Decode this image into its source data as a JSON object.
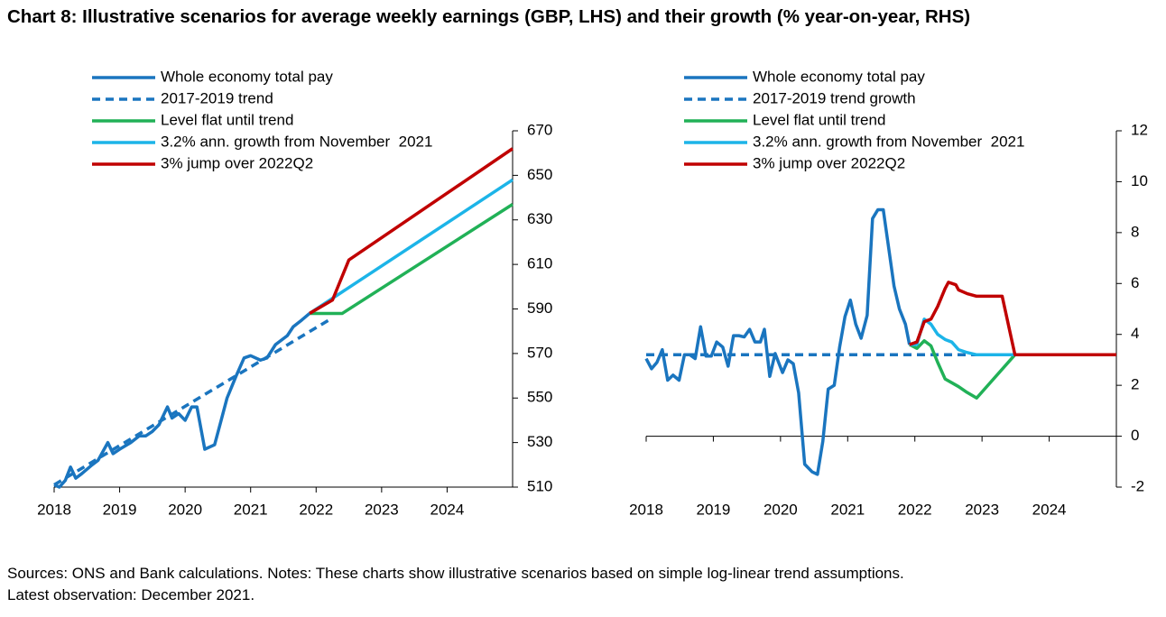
{
  "title": "Chart 8: Illustrative scenarios for average weekly earnings (GBP, LHS) and their growth (% year-on-year, RHS)",
  "notes": [
    "Sources: ONS and Bank calculations. Notes: These charts show illustrative scenarios based on simple log-linear trend assumptions.",
    "Latest observation: December 2021."
  ],
  "chart_data": [
    {
      "type": "line",
      "y_axis_side": "right",
      "legend": "upper left",
      "xlim": [
        2018,
        2025
      ],
      "xticks": [
        2018,
        2019,
        2020,
        2021,
        2022,
        2023,
        2024
      ],
      "ylim": [
        510,
        670
      ],
      "yticks": [
        510,
        530,
        550,
        570,
        590,
        610,
        630,
        650,
        670
      ],
      "series": [
        {
          "name": "Whole economy total pay",
          "color": "#1a75bf",
          "linestyle": "solid",
          "x": [
            2018,
            2018.08,
            2018.17,
            2018.25,
            2018.33,
            2018.42,
            2018.58,
            2018.67,
            2018.82,
            2018.9,
            2019,
            2019.17,
            2019.3,
            2019.4,
            2019.5,
            2019.6,
            2019.73,
            2019.8,
            2019.9,
            2020,
            2020.1,
            2020.18,
            2020.3,
            2020.45,
            2020.55,
            2020.64,
            2020.78,
            2020.9,
            2021,
            2021.15,
            2021.25,
            2021.38,
            2021.56,
            2021.65,
            2021.78,
            2021.9
          ],
          "values": [
            511,
            510,
            513,
            519,
            514,
            516,
            520,
            522,
            530,
            525,
            527,
            530,
            533,
            533,
            535,
            538,
            546,
            541,
            543,
            540,
            546,
            546,
            527,
            529,
            540,
            550,
            560,
            568,
            569,
            567,
            568,
            574,
            578,
            582,
            585,
            588
          ]
        },
        {
          "name": "2017-2019 trend",
          "color": "#1a75bf",
          "linestyle": "dashed",
          "x": [
            2018,
            2022.25
          ],
          "values": [
            511,
            586
          ]
        },
        {
          "name": "Level flat until trend",
          "color": "#21b157",
          "linestyle": "solid",
          "x": [
            2021.9,
            2022.4,
            2025
          ],
          "values": [
            588,
            588,
            637
          ]
        },
        {
          "name": "3.2% ann. growth from November  2021",
          "color": "#1cb4e8",
          "linestyle": "solid",
          "x": [
            2021.9,
            2025
          ],
          "values": [
            588,
            648
          ]
        },
        {
          "name": "3% jump over 2022Q2",
          "color": "#c00000",
          "linestyle": "solid",
          "x": [
            2021.9,
            2022.25,
            2022.5,
            2025
          ],
          "values": [
            588,
            594,
            612,
            662
          ]
        }
      ]
    },
    {
      "type": "line",
      "y_axis_side": "right",
      "legend": "upper left",
      "xlim": [
        2018,
        2025
      ],
      "xticks": [
        2018,
        2019,
        2020,
        2021,
        2022,
        2023,
        2024
      ],
      "ylim": [
        -2,
        12
      ],
      "yticks": [
        -2,
        0,
        2,
        4,
        6,
        8,
        10,
        12
      ],
      "series": [
        {
          "name": "Whole economy total pay",
          "color": "#1a75bf",
          "linestyle": "solid",
          "x": [
            2018,
            2018.08,
            2018.16,
            2018.24,
            2018.32,
            2018.4,
            2018.49,
            2018.57,
            2018.65,
            2018.73,
            2018.81,
            2018.89,
            2018.97,
            2019.05,
            2019.14,
            2019.22,
            2019.3,
            2019.38,
            2019.46,
            2019.54,
            2019.62,
            2019.7,
            2019.76,
            2019.84,
            2019.92,
            2020.03,
            2020.11,
            2020.19,
            2020.27,
            2020.36,
            2020.47,
            2020.55,
            2020.63,
            2020.71,
            2020.8,
            2020.88,
            2020.96,
            2021.04,
            2021.12,
            2021.2,
            2021.29,
            2021.37,
            2021.45,
            2021.53,
            2021.61,
            2021.69,
            2021.77,
            2021.86,
            2021.92
          ],
          "values": [
            3.05,
            2.65,
            2.9,
            3.4,
            2.2,
            2.4,
            2.2,
            3.2,
            3.2,
            3.05,
            4.3,
            3.15,
            3.15,
            3.7,
            3.5,
            2.75,
            3.95,
            3.95,
            3.9,
            4.2,
            3.7,
            3.7,
            4.2,
            2.35,
            3.25,
            2.5,
            3.0,
            2.85,
            1.7,
            -1.1,
            -1.4,
            -1.5,
            -0.2,
            1.85,
            2.0,
            3.5,
            4.7,
            5.35,
            4.4,
            3.85,
            4.75,
            8.55,
            8.9,
            8.9,
            7.4,
            5.9,
            5.0,
            4.4,
            3.6
          ]
        },
        {
          "name": "2017-2019 trend growth",
          "color": "#1a75bf",
          "linestyle": "dashed",
          "x": [
            2018,
            2023.45
          ],
          "values": [
            3.2,
            3.2
          ]
        },
        {
          "name": "Level flat until trend",
          "color": "#21b157",
          "linestyle": "solid",
          "x": [
            2021.92,
            2022.03,
            2022.14,
            2022.24,
            2022.34,
            2022.45,
            2022.55,
            2022.65,
            2022.76,
            2022.92,
            2023.49,
            2025
          ],
          "values": [
            3.6,
            3.45,
            3.75,
            3.55,
            2.9,
            2.25,
            2.1,
            1.95,
            1.75,
            1.5,
            3.2,
            3.2
          ]
        },
        {
          "name": "3.2% ann. growth from November  2021",
          "color": "#1cb4e8",
          "linestyle": "solid",
          "x": [
            2021.92,
            2022.03,
            2022.14,
            2022.24,
            2022.34,
            2022.45,
            2022.55,
            2022.65,
            2022.76,
            2022.92,
            2023.49,
            2025
          ],
          "values": [
            3.6,
            3.6,
            4.6,
            4.4,
            4.0,
            3.8,
            3.7,
            3.4,
            3.3,
            3.2,
            3.2,
            3.2
          ]
        },
        {
          "name": "3% jump over 2022Q2",
          "color": "#c00000",
          "linestyle": "solid",
          "x": [
            2021.92,
            2022.03,
            2022.14,
            2022.24,
            2022.34,
            2022.45,
            2022.5,
            2022.61,
            2022.65,
            2022.78,
            2022.92,
            2023.3,
            2023.49,
            2025
          ],
          "values": [
            3.6,
            3.7,
            4.5,
            4.6,
            5.1,
            5.8,
            6.05,
            5.95,
            5.75,
            5.6,
            5.5,
            5.5,
            3.2,
            3.2
          ]
        }
      ]
    }
  ]
}
